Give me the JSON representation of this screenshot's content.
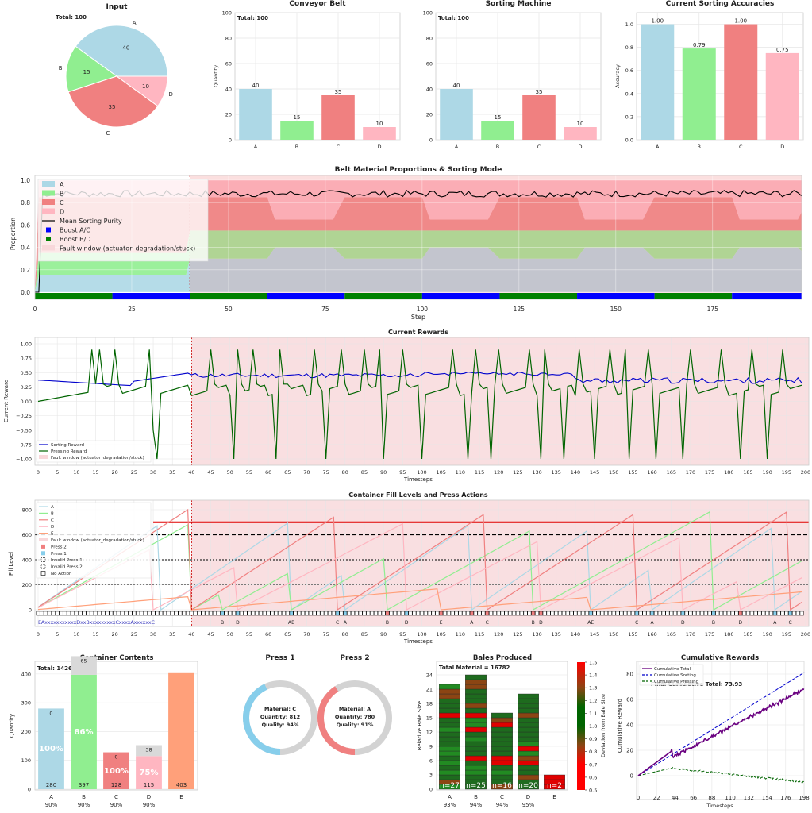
{
  "colors": {
    "A": "#add8e6",
    "B": "#90ee90",
    "C": "#f08080",
    "D": "#ffb6c1",
    "E": "#ffa07a",
    "fault": "#f8d7da",
    "boostAC": "#0000ff",
    "boostBD": "#008000"
  },
  "top": {
    "input": {
      "title": "Input",
      "total": "Total: 100",
      "labels": [
        "A",
        "B",
        "C",
        "D"
      ],
      "values": [
        40,
        15,
        35,
        10
      ],
      "pct": [
        "40",
        "15",
        "35",
        "10"
      ]
    },
    "conveyor": {
      "title": "Conveyor Belt",
      "total": "Total: 100",
      "ylabel": "Quantity",
      "categories": [
        "A",
        "B",
        "C",
        "D"
      ],
      "values": [
        40,
        15,
        35,
        10
      ],
      "ylim": [
        0,
        100
      ],
      "yticks": [
        "0",
        "20",
        "40",
        "60",
        "80",
        "100"
      ]
    },
    "sorter": {
      "title": "Sorting Machine",
      "total": "Total: 100",
      "categories": [
        "A",
        "B",
        "C",
        "D"
      ],
      "values": [
        40,
        15,
        35,
        10
      ],
      "ylim": [
        0,
        100
      ],
      "yticks": [
        "0",
        "20",
        "40",
        "60",
        "80",
        "100"
      ]
    },
    "accuracy": {
      "title": "Current Sorting Accuracies",
      "ylabel": "Accuracy",
      "categories": [
        "A",
        "B",
        "C",
        "D"
      ],
      "values": [
        1.0,
        0.79,
        1.0,
        0.75
      ],
      "labels": [
        "1.00",
        "0.79",
        "1.00",
        "0.75"
      ],
      "yticks": [
        "0.0",
        "0.2",
        "0.4",
        "0.6",
        "0.8",
        "1.0"
      ]
    }
  },
  "proportions": {
    "title": "Belt Material Proportions & Sorting Mode",
    "xlabel": "Step",
    "ylabel": "Proportion",
    "yticks": [
      "0.0",
      "0.2",
      "0.4",
      "0.6",
      "0.8",
      "1.0"
    ],
    "xticks": [
      "0",
      "25",
      "50",
      "75",
      "100",
      "125",
      "150",
      "175"
    ],
    "legend": [
      "A",
      "B",
      "C",
      "D",
      "Mean Sorting Purity",
      "Boost A/C",
      "Boost B/D",
      "Fault window (actuator_degradation/stuck)"
    ]
  },
  "rewards": {
    "title": "Current Rewards",
    "xlabel": "Timesteps",
    "ylabel": "Current Reward",
    "yticks": [
      "1.00",
      "0.75",
      "0.50",
      "0.25",
      "0.00",
      "−0.25",
      "−0.50",
      "−0.75",
      "−1.00"
    ],
    "xticks": [
      "0",
      "5",
      "10",
      "15",
      "20",
      "25",
      "30",
      "35",
      "40",
      "45",
      "50",
      "55",
      "60",
      "65",
      "70",
      "75",
      "80",
      "85",
      "90",
      "95",
      "100",
      "105",
      "110",
      "115",
      "120",
      "125",
      "130",
      "135",
      "140",
      "145",
      "150",
      "155",
      "160",
      "165",
      "170",
      "175",
      "180",
      "185",
      "190",
      "195",
      "200"
    ],
    "legend": [
      "Sorting Reward",
      "Pressing Reward",
      "Fault window (actuator_degradation/stuck)"
    ]
  },
  "fill": {
    "title": "Container Fill Levels and Press Actions",
    "xlabel": "Timesteps",
    "ylabel": "Fill Level",
    "yticks": [
      "0",
      "200",
      "400",
      "600",
      "800"
    ],
    "legend": [
      "A",
      "B",
      "C",
      "D",
      "E",
      "Fault window (actuator_degradation/stuck)",
      "Press 2",
      "Press 1",
      "Invalid Press 1",
      "Invalid Press 2",
      "No Action"
    ],
    "markers_text": "EAxxxxxxxxxxxDxxBxxxxxxxxxCxxxxAxxxxxxC",
    "press_labels": [
      {
        "t": 48,
        "l": "B"
      },
      {
        "t": 52,
        "l": "D"
      },
      {
        "t": 66,
        "l": "AB"
      },
      {
        "t": 78,
        "l": "C"
      },
      {
        "t": 80,
        "l": "A"
      },
      {
        "t": 91,
        "l": "B"
      },
      {
        "t": 96,
        "l": "D"
      },
      {
        "t": 105,
        "l": "E"
      },
      {
        "t": 113,
        "l": "A"
      },
      {
        "t": 117,
        "l": "C"
      },
      {
        "t": 129,
        "l": "B"
      },
      {
        "t": 131,
        "l": "D"
      },
      {
        "t": 144,
        "l": "AE"
      },
      {
        "t": 156,
        "l": "C"
      },
      {
        "t": 160,
        "l": "A"
      },
      {
        "t": 168,
        "l": "D"
      },
      {
        "t": 176,
        "l": "B"
      },
      {
        "t": 183,
        "l": "D"
      },
      {
        "t": 192,
        "l": "A"
      },
      {
        "t": 196,
        "l": "C"
      }
    ]
  },
  "contents": {
    "title": "Container Contents",
    "total": "Total: 1426",
    "ylabel": "Quantity",
    "categories": [
      "A",
      "B",
      "C",
      "D",
      "E"
    ],
    "sublabels": [
      "90%",
      "90%",
      "90%",
      "90%",
      ""
    ],
    "values": [
      280,
      397,
      128,
      115,
      403
    ],
    "extra": [
      0,
      65,
      0,
      38,
      0
    ],
    "extra_labels": [
      "0",
      "65",
      "0",
      "38",
      ""
    ],
    "pct": [
      "100%",
      "86%",
      "100%",
      "75%",
      ""
    ],
    "yticks": [
      "0",
      "100",
      "200",
      "300",
      "400"
    ]
  },
  "presses": [
    {
      "title": "Press 1",
      "material": "Material: C",
      "quantity": "Quantity: 812",
      "quality": "Quality: 94%",
      "fraction": 0.43,
      "color": "#87ceeb"
    },
    {
      "title": "Press 2",
      "material": "Material: A",
      "quantity": "Quantity: 780",
      "quality": "Quality: 91%",
      "fraction": 0.41,
      "color": "#f08080"
    }
  ],
  "bales": {
    "title": "Bales Produced",
    "total": "Total Material = 16782",
    "ylabel": "Relative Bale Size",
    "cbar_label": "Deviation from Bale Size",
    "categories": [
      "A",
      "B",
      "C",
      "D",
      "E"
    ],
    "sublabels": [
      "93%",
      "94%",
      "94%",
      "95%",
      ""
    ],
    "counts": [
      "n=27",
      "n=25",
      "n=16",
      "n=20",
      "n=2"
    ],
    "heights": [
      22,
      24,
      16,
      19.5,
      2.5
    ],
    "yticks": [
      "0",
      "3",
      "6",
      "9",
      "12",
      "15",
      "18",
      "21",
      "24"
    ],
    "cbar_ticks": [
      "0.5",
      "0.6",
      "0.7",
      "0.8",
      "0.9",
      "1.0",
      "1.1",
      "1.2",
      "1.3",
      "1.4",
      "1.5"
    ]
  },
  "cumulative": {
    "title": "Cumulative Rewards",
    "xlabel": "Timesteps",
    "ylabel": "Cumulative Reward",
    "legend": [
      "Cumulative Total",
      "Cumulative Sorting",
      "Cumulative Pressing"
    ],
    "final_label": "Final Cumulative Total: 73.93",
    "xticks": [
      "0",
      "22",
      "44",
      "66",
      "88",
      "110",
      "132",
      "154",
      "176",
      "198"
    ],
    "yticks": [
      "0",
      "20",
      "40",
      "60",
      "80"
    ],
    "xlim": [
      0,
      200
    ],
    "ylim": [
      -8,
      88
    ]
  }
}
